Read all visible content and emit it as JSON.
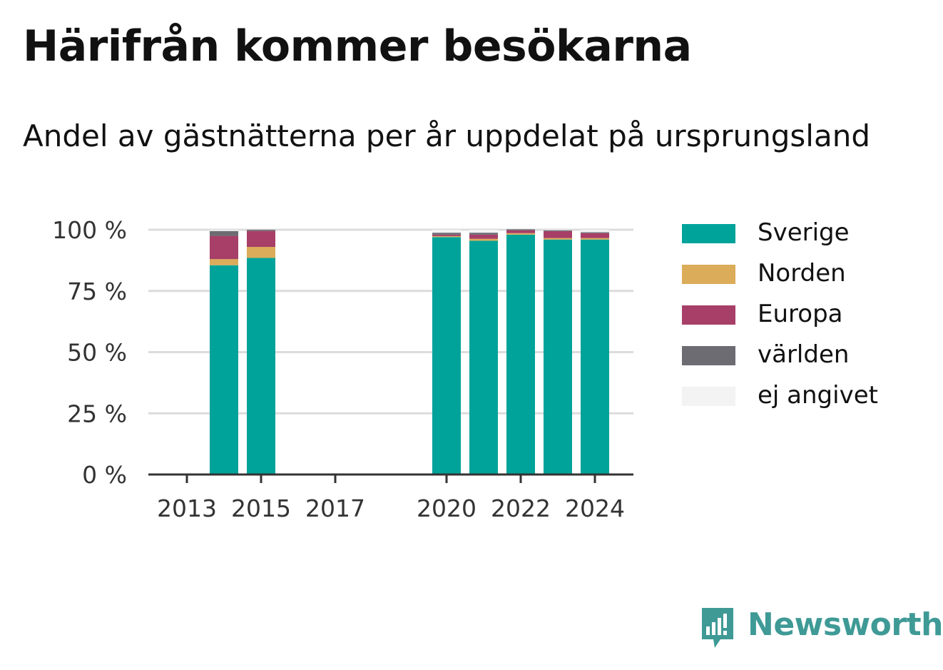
{
  "title": "Härifrån kommer besökarna",
  "subtitle": "Andel av gästnätterna per år uppdelat på ursprungsland",
  "brand": "Newsworthy",
  "chart_data": {
    "type": "bar",
    "stacked": true,
    "categories": [
      "2013",
      "2014",
      "2015",
      "2016",
      "2017",
      "2018",
      "2019",
      "2020",
      "2021",
      "2022",
      "2023",
      "2024"
    ],
    "x_tick_labels": [
      "2013",
      "2015",
      "2017",
      "2020",
      "2022",
      "2024"
    ],
    "ylim": [
      0,
      100
    ],
    "y_ticks": [
      0,
      25,
      50,
      75,
      100
    ],
    "y_tick_labels": [
      "0 %",
      "25 %",
      "50 %",
      "75 %",
      "100 %"
    ],
    "grid": true,
    "legend_position": "right",
    "series": [
      {
        "name": "Sverige",
        "color": "#00a39a",
        "values": [
          null,
          85.5,
          88.5,
          null,
          null,
          null,
          null,
          97,
          95.5,
          98,
          96,
          96
        ]
      },
      {
        "name": "Norden",
        "color": "#dbac59",
        "values": [
          null,
          2.5,
          4.5,
          null,
          null,
          null,
          null,
          0.4,
          0.8,
          0.6,
          0.6,
          0.6
        ]
      },
      {
        "name": "Europa",
        "color": "#a73f68",
        "values": [
          null,
          9.5,
          6.5,
          null,
          null,
          null,
          null,
          0.6,
          1.7,
          1.2,
          2.8,
          2.0
        ]
      },
      {
        "name": "världen",
        "color": "#6d6c73",
        "values": [
          null,
          2.0,
          0.5,
          null,
          null,
          null,
          null,
          0.8,
          0.8,
          0.4,
          0.4,
          0.4
        ]
      },
      {
        "name": "ej angivet",
        "color": "#f3f3f3",
        "values": [
          null,
          0.5,
          0,
          null,
          null,
          null,
          null,
          1.2,
          1.2,
          0,
          0.2,
          1.0
        ]
      }
    ]
  }
}
